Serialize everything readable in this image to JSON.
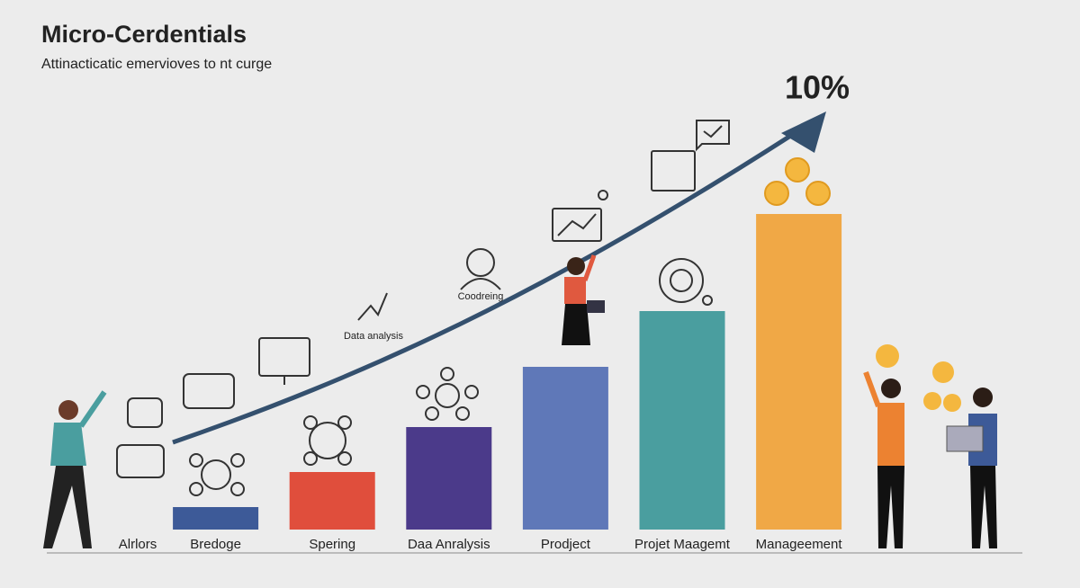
{
  "chart_data": {
    "type": "bar",
    "title": "Micro-Cerdentials",
    "subtitle": "Attinacticatic emervioves to nt curge",
    "categories": [
      "Alrlors",
      "Bredoge",
      "Spering",
      "Daa Anralysis",
      "Prodject",
      "Projet Maagemt",
      "Manageement"
    ],
    "values": [
      null,
      25,
      64,
      114,
      181,
      243,
      351
    ],
    "colors": [
      null,
      "#3d5a98",
      "#e04e3c",
      "#4b3a8a",
      "#5f78b8",
      "#4a9e9f",
      "#f0a846"
    ],
    "ylim": [
      0,
      400
    ],
    "annotations": {
      "peak": "10%",
      "data_analysis": "Data analysis",
      "coordinating": "Coodreing"
    }
  }
}
